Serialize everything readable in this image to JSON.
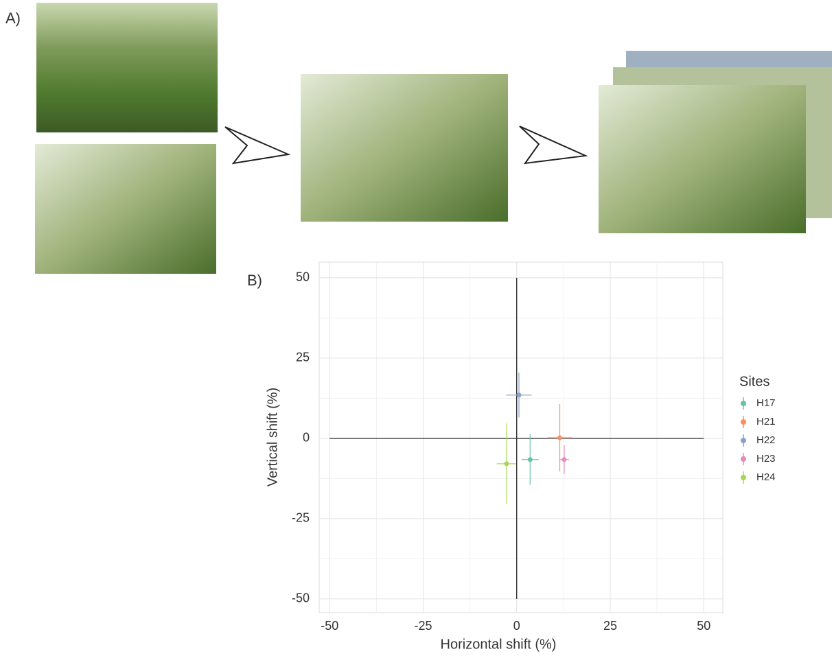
{
  "panel_labels": [
    "A)",
    "B)"
  ],
  "chart_data": {
    "type": "scatter",
    "x_label": "Horizontal shift (%)",
    "y_label": "Vertical shift (%)",
    "legend_title": "Sites",
    "legend": "right",
    "grid": true,
    "minor_grid": true,
    "xlim": [
      -52.8,
      55.1
    ],
    "ylim": [
      -54.3,
      54.9
    ],
    "xticks": [
      -50,
      -25,
      0,
      25,
      50
    ],
    "yticks": [
      -50,
      -25,
      0,
      25,
      50
    ],
    "reference_lines": [
      {
        "orientation": "vertical",
        "at": 0,
        "from": -50,
        "to": 50
      },
      {
        "orientation": "horizontal",
        "at": 0,
        "from": -50,
        "to": 50
      }
    ],
    "series": [
      {
        "name": "H17",
        "color": "#66c2a5",
        "x": [
          3.6
        ],
        "values": [
          -6.6
        ],
        "xerr": [
          2.3
        ],
        "yerr": [
          7.9
        ]
      },
      {
        "name": "H21",
        "color": "#fc8d62",
        "x": [
          11.5
        ],
        "values": [
          0.2
        ],
        "xerr": [
          3.3
        ],
        "yerr": [
          10.5
        ]
      },
      {
        "name": "H22",
        "color": "#8da0cb",
        "x": [
          0.6
        ],
        "values": [
          13.5
        ],
        "xerr": [
          3.4
        ],
        "yerr": [
          7
        ]
      },
      {
        "name": "H23",
        "color": "#e78ac3",
        "x": [
          12.7
        ],
        "values": [
          -6.6
        ],
        "xerr": [
          1.3
        ],
        "yerr": [
          4.4
        ]
      },
      {
        "name": "H24",
        "color": "#a6d854",
        "x": [
          -2.7
        ],
        "values": [
          -7.9
        ],
        "xerr": [
          2.6
        ],
        "yerr": [
          12.6
        ]
      }
    ]
  }
}
